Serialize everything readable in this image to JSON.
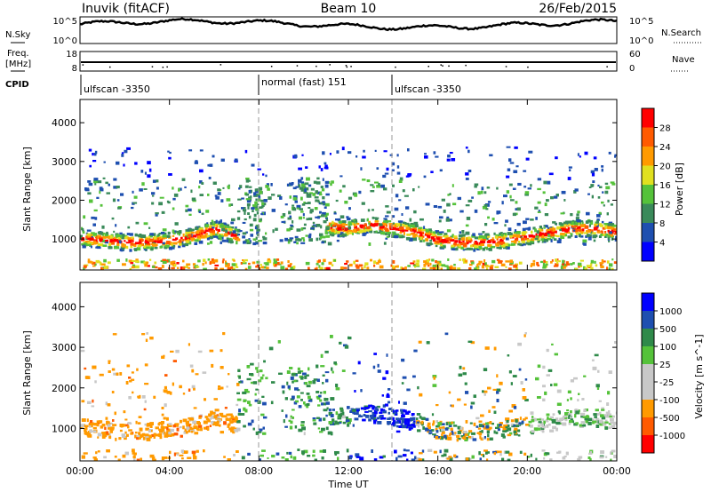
{
  "header": {
    "station": "Inuvik (fitACF)",
    "beam": "Beam 10",
    "date": "26/Feb/2015"
  },
  "labels": {
    "nsky": "N.Sky",
    "freq": "Freq.",
    "freq_unit": "[MHz]",
    "cpid": "CPID",
    "nsearch": "N.Search",
    "nave": "Nave"
  },
  "nsky_ticks": [
    "10^5",
    "10^0"
  ],
  "nsearch_ticks": [
    "10^5",
    "10^0"
  ],
  "freq_ticks": [
    "18",
    "8"
  ],
  "nave_ticks": [
    "60",
    "0"
  ],
  "cpid_segments": [
    {
      "start": "00:00",
      "label": "ulfscan -3350"
    },
    {
      "start": "08:00",
      "label": "normal (fast) 151"
    },
    {
      "start": "14:00",
      "label": "ulfscan -3350"
    }
  ],
  "colors": {
    "power_scale": [
      "#0000ff",
      "#1e4fb0",
      "#3a8a5a",
      "#55c23a",
      "#e0e020",
      "#ff9a00",
      "#ff5a00",
      "#ff0000"
    ],
    "velocity_scale": [
      "#ff0000",
      "#ff5a00",
      "#ff9a00",
      "#c8c8c8",
      "#c8c8c8",
      "#55c23a",
      "#2f8a4a",
      "#1e4fb0",
      "#0000ff"
    ]
  },
  "chart_data": [
    {
      "type": "heatmap",
      "title": "",
      "xlabel": "Time UT",
      "ylabel": "Slant Range [km]",
      "xlim": [
        "00:00",
        "24:00"
      ],
      "ylim": [
        200,
        4600
      ],
      "x_ticks": [
        "00:00",
        "04:00",
        "08:00",
        "12:00",
        "16:00",
        "20:00",
        "00:00"
      ],
      "y_ticks": [
        "1000",
        "2000",
        "3000",
        "4000"
      ],
      "colorbar": {
        "label": "Power [dB]",
        "ticks": [
          "4",
          "8",
          "12",
          "16",
          "20",
          "24",
          "28"
        ],
        "range": [
          0,
          30
        ]
      },
      "main_band": {
        "time_h": [
          0,
          1,
          2,
          3,
          4,
          5,
          6,
          7,
          8,
          9,
          10,
          11,
          12,
          13,
          14,
          15,
          16,
          17,
          18,
          19,
          20,
          21,
          22,
          23,
          24
        ],
        "range_km": [
          1050,
          1000,
          950,
          950,
          1000,
          1100,
          1300,
          1100,
          null,
          null,
          null,
          1350,
          1300,
          1400,
          1300,
          1200,
          1000,
          950,
          950,
          1000,
          1100,
          1200,
          1300,
          1300,
          1200
        ]
      }
    },
    {
      "type": "heatmap",
      "title": "",
      "xlabel": "Time UT",
      "ylabel": "Slant Range [km]",
      "xlim": [
        "00:00",
        "24:00"
      ],
      "ylim": [
        200,
        4600
      ],
      "x_ticks": [
        "00:00",
        "04:00",
        "08:00",
        "12:00",
        "16:00",
        "20:00",
        "00:00"
      ],
      "y_ticks": [
        "1000",
        "2000",
        "3000",
        "4000"
      ],
      "colorbar": {
        "label": "Velocity [m s^-1]",
        "ticks": [
          "-1000",
          "-500",
          "-100",
          "-25",
          "25",
          "100",
          "500",
          "1000"
        ],
        "range": [
          -1200,
          1200
        ]
      }
    }
  ]
}
